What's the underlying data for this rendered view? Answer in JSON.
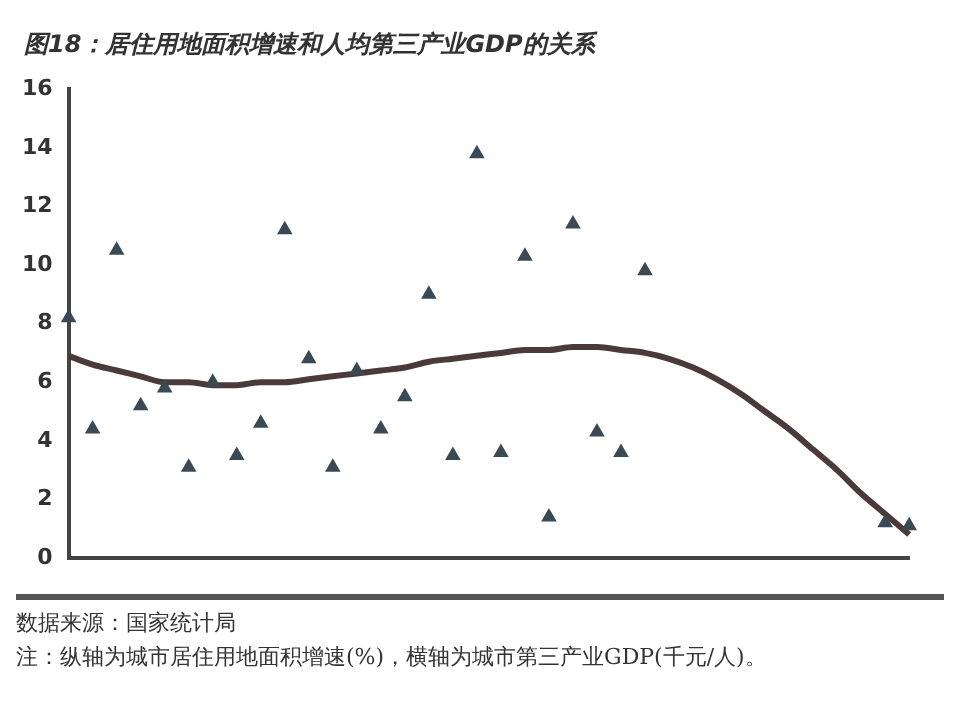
{
  "chart_data": {
    "type": "scatter",
    "title": "图18：居住用地面积增速和人均第三产业GDP的关系",
    "categories": [
      null,
      null,
      null,
      null,
      null,
      null,
      null,
      null,
      null,
      null,
      null,
      null,
      null,
      null,
      null,
      null,
      null,
      null,
      null,
      null,
      null,
      null,
      null,
      null,
      null,
      null,
      null,
      null,
      null,
      null,
      null,
      null,
      null,
      null,
      null,
      null
    ],
    "series": [
      {
        "marker": "triangle",
        "color": "#3a4a55",
        "values": [
          8.2,
          4.4,
          10.5,
          5.2,
          5.8,
          3.1,
          6.0,
          3.5,
          4.6,
          11.2,
          6.8,
          3.1,
          6.4,
          4.4,
          5.5,
          9.0,
          3.5,
          13.8,
          3.6,
          10.3,
          1.4,
          11.4,
          4.3,
          3.6,
          9.8,
          null,
          null,
          null,
          null,
          null,
          null,
          null,
          null,
          null,
          1.2,
          1.1
        ]
      },
      {
        "type": "line",
        "marker": "none",
        "color": "#4a3a3a",
        "values": [
          6.9,
          6.6,
          6.4,
          6.2,
          6.0,
          6.0,
          5.9,
          5.9,
          6.0,
          6.0,
          6.1,
          6.2,
          6.3,
          6.4,
          6.5,
          6.7,
          6.8,
          6.9,
          7.0,
          7.1,
          7.1,
          7.2,
          7.2,
          7.1,
          7.0,
          6.8,
          6.5,
          6.1,
          5.6,
          5.0,
          4.4,
          3.7,
          3.0,
          2.2,
          1.5,
          0.8
        ]
      }
    ],
    "ylim": [
      0,
      16
    ],
    "yticks": [
      0,
      2,
      4,
      6,
      8,
      10,
      12,
      14,
      16
    ],
    "grid": false,
    "legend": false,
    "annotations": [
      "数据来源：国家统计局",
      "注：纵轴为城市居住用地面积增速(%)，横轴为城市第三产业GDP(千元/人)。"
    ]
  }
}
